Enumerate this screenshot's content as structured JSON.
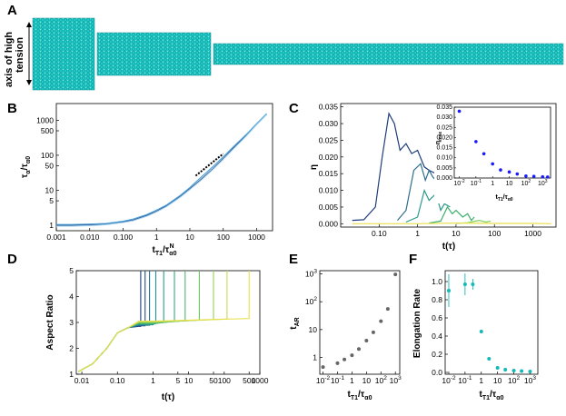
{
  "panel_letters": [
    "A",
    "B",
    "C",
    "D",
    "E",
    "F"
  ],
  "colors": {
    "tissue": "#1fc4c4",
    "tissue_dark": "#0d8d8f",
    "dark_blue": "#1e3d7a",
    "teal": "#2a9a8a",
    "green": "#3cb86a",
    "yellow": "#e8e04a",
    "blue_points": "#1a1aff",
    "gray_points": "#666666",
    "teal_points": "#16b8b8"
  },
  "panel_a": {
    "axis_label_line1": "axis of high",
    "axis_label_line2": "tension"
  },
  "chart_data": [
    {
      "id": "B",
      "type": "line",
      "xlabel": "t_T1/τ_α0^N",
      "ylabel": "τ_α^N/τ_α0^N",
      "xscale": "log",
      "yscale": "log",
      "xlim": [
        0.001,
        3000
      ],
      "ylim": [
        0.7,
        3000
      ],
      "xticks": [
        "0.001",
        "0.010",
        "0.100",
        "1",
        "10",
        "100",
        "1000"
      ],
      "yticks": [
        "1",
        "5",
        "10",
        "50",
        "100",
        "500",
        "1000"
      ],
      "series": [
        {
          "x": [
            0.001,
            0.003,
            0.01,
            0.03,
            0.1,
            0.2,
            0.5,
            1,
            2,
            5,
            10,
            20,
            50,
            100,
            200,
            500,
            1000,
            2000
          ],
          "y": [
            1.0,
            1.0,
            1.02,
            1.08,
            1.25,
            1.4,
            1.9,
            2.5,
            3.6,
            6.5,
            11,
            19,
            42,
            80,
            160,
            380,
            760,
            1500
          ]
        },
        {
          "x": [
            0.001,
            0.003,
            0.01,
            0.03,
            0.1,
            0.2,
            0.5,
            1,
            2,
            5,
            10,
            20,
            50,
            100,
            200,
            500,
            1000,
            2000
          ],
          "y": [
            1.05,
            1.05,
            1.08,
            1.12,
            1.3,
            1.5,
            2.0,
            2.7,
            3.8,
            7,
            12,
            22,
            48,
            90,
            175,
            400,
            800,
            1550
          ]
        },
        {
          "x": [
            0.001,
            0.003,
            0.01,
            0.03,
            0.1,
            0.2,
            0.5,
            1,
            2,
            5,
            10,
            20,
            50,
            100,
            200,
            500,
            1000,
            2000
          ],
          "y": [
            0.95,
            0.95,
            0.98,
            1.04,
            1.2,
            1.35,
            1.8,
            2.4,
            3.4,
            6.2,
            10.5,
            18,
            40,
            76,
            150,
            360,
            740,
            1450
          ]
        }
      ],
      "fit": {
        "x": [
          15,
          100
        ],
        "y": [
          26,
          110
        ]
      }
    },
    {
      "id": "C",
      "type": "line",
      "xlabel": "t(τ)",
      "ylabel": "η",
      "xscale": "log",
      "xlim": [
        0.01,
        4000
      ],
      "ylim": [
        -0.001,
        0.036
      ],
      "xticks": [
        "0.10",
        "1",
        "10",
        "100",
        "1000"
      ],
      "yticks": [
        "0.000",
        "0.005",
        "0.010",
        "0.015",
        "0.020",
        "0.025",
        "0.030",
        "0.035"
      ],
      "series": [
        {
          "x": [
            0.02,
            0.04,
            0.08,
            0.12,
            0.18,
            0.25,
            0.35,
            0.5,
            0.7,
            1,
            1.5,
            2,
            3
          ],
          "y": [
            0.001,
            0.0012,
            0.005,
            0.02,
            0.033,
            0.03,
            0.022,
            0.024,
            0.021,
            0.022,
            0.017,
            0.016,
            0.015
          ]
        },
        {
          "x": [
            0.3,
            0.5,
            0.8,
            1.2,
            1.6,
            2,
            2.5,
            3
          ],
          "y": [
            0.001,
            0.004,
            0.016,
            0.018,
            0.013,
            0.016,
            0.014,
            0.013
          ]
        },
        {
          "x": [
            0.5,
            1,
            1.5,
            2,
            3,
            4,
            5,
            7
          ],
          "y": [
            0.0005,
            0.002,
            0.01,
            0.007,
            0.009,
            0.004,
            0.006,
            0.005
          ]
        },
        {
          "x": [
            2,
            4,
            6,
            8,
            10,
            15,
            20,
            25,
            30
          ],
          "y": [
            0.0002,
            0.0008,
            0.005,
            0.003,
            0.004,
            0.002,
            0.003,
            0.001,
            0.002
          ]
        },
        {
          "x": [
            10,
            20,
            40,
            60,
            80
          ],
          "y": [
            0.0001,
            0.0003,
            0.001,
            0.0005,
            0.0008
          ]
        },
        {
          "x": [
            0.02,
            1,
            10,
            100,
            1000,
            3000
          ],
          "y": [
            0.0,
            0.0,
            0.0002,
            0.0001,
            0.0001,
            0.0
          ]
        }
      ],
      "inset": {
        "xlabel": "t_T1/τ_α0^N",
        "ylabel": "η_max",
        "xlim": [
          0.005,
          3000
        ],
        "ylim": [
          0,
          0.035
        ],
        "xticks": [
          "10^-2",
          "10^-1",
          "1",
          "10",
          "10^2",
          "10^3"
        ],
        "yticks": [
          "0.000",
          "0.005",
          "0.010",
          "0.015",
          "0.020",
          "0.025",
          "0.030",
          "0.035"
        ],
        "points": {
          "x": [
            0.01,
            0.1,
            0.3,
            1,
            3,
            10,
            30,
            100,
            300,
            1000,
            2000
          ],
          "y": [
            0.033,
            0.018,
            0.012,
            0.007,
            0.004,
            0.003,
            0.002,
            0.001,
            0.0008,
            0.0006,
            0.0005
          ]
        }
      }
    },
    {
      "id": "D",
      "type": "line",
      "xlabel": "t(τ)",
      "ylabel": "Aspect Ratio",
      "xscale": "log",
      "xlim": [
        0.007,
        1000
      ],
      "ylim": [
        1,
        5
      ],
      "xticks": [
        "0.01",
        "0.10",
        "1",
        "5",
        "10",
        "50",
        "100",
        "500",
        "1000"
      ],
      "yticks": [
        "1",
        "2",
        "3",
        "4",
        "5"
      ],
      "break_times": [
        0.45,
        0.6,
        0.8,
        1.2,
        2,
        4,
        8,
        20,
        50,
        120,
        500
      ]
    },
    {
      "id": "E",
      "type": "scatter",
      "xlabel": "t_T1/τ_α0^N",
      "ylabel": "t_AR",
      "xscale": "log",
      "yscale": "log",
      "xlim": [
        0.006,
        2000
      ],
      "ylim": [
        0.25,
        1300
      ],
      "xticks": [
        "10^-2",
        "10^-1",
        "1",
        "10",
        "10^2",
        "10^3"
      ],
      "yticks": [
        "1",
        "10",
        "10^2",
        "10^3"
      ],
      "points": {
        "x": [
          0.01,
          0.1,
          0.3,
          1,
          3,
          10,
          30,
          100,
          300,
          1000
        ],
        "y": [
          0.45,
          0.62,
          0.85,
          1.2,
          2,
          4,
          8,
          20,
          55,
          950
        ]
      }
    },
    {
      "id": "F",
      "type": "scatter",
      "xlabel": "t_T1/τ_α0^N",
      "ylabel": "Elongation Rate",
      "xscale": "log",
      "xlim": [
        0.006,
        3000
      ],
      "ylim": [
        -0.02,
        1.12
      ],
      "xticks": [
        "10^-2",
        "10^-1",
        "1",
        "10",
        "10^2",
        "10^3"
      ],
      "yticks": [
        "0.0",
        "0.2",
        "0.4",
        "0.6",
        "0.8",
        "1.0"
      ],
      "points": {
        "x": [
          0.01,
          0.1,
          0.3,
          1,
          3,
          10,
          30,
          100,
          300,
          1000
        ],
        "y": [
          0.9,
          0.97,
          0.97,
          0.45,
          0.15,
          0.05,
          0.03,
          0.02,
          0.015,
          0.01
        ],
        "err": [
          0.18,
          0.12,
          0.06,
          0.02,
          0.01,
          0,
          0,
          0,
          0,
          0
        ]
      }
    }
  ]
}
